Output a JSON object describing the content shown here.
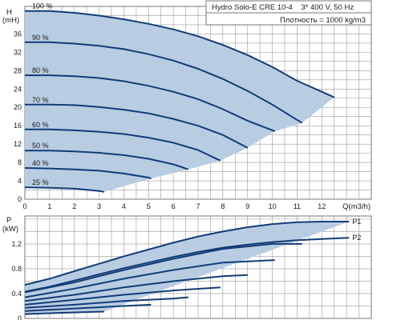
{
  "chart_data": [
    {
      "type": "line",
      "title": "Hydro Solo-E CRE 10-4    3* 400 V, 50 Hz",
      "subtitle": "Плотность = 1000 kg/m3",
      "ylabel_top": "H",
      "ylabel_unit": "(mH)",
      "xlabel": "Q(m3/h)",
      "xlim": [
        0,
        14
      ],
      "ylim": [
        0,
        42
      ],
      "xticks": [
        "0",
        "1",
        "2",
        "3",
        "4",
        "5",
        "6",
        "7",
        "8",
        "9",
        "10",
        "11",
        "12"
      ],
      "yticks": [
        "0",
        "4",
        "8",
        "12",
        "16",
        "20",
        "24",
        "28",
        "32",
        "36"
      ],
      "grid": true,
      "colors": {
        "curve": "#123c78",
        "area": "#b9cde2",
        "grid": "#9a9a9a"
      },
      "series": [
        {
          "name": "100 %",
          "points": [
            [
              0,
              41
            ],
            [
              1,
              41
            ],
            [
              2,
              40.6
            ],
            [
              3,
              40
            ],
            [
              4,
              39.2
            ],
            [
              5,
              38.2
            ],
            [
              6,
              37
            ],
            [
              7,
              35.5
            ],
            [
              8,
              33.6
            ],
            [
              9,
              31.4
            ],
            [
              10,
              28.8
            ],
            [
              11,
              25.8
            ],
            [
              12.5,
              22.2
            ]
          ]
        },
        {
          "name": "90 %",
          "points": [
            [
              0,
              34.2
            ],
            [
              1,
              34.2
            ],
            [
              2,
              33.9
            ],
            [
              3,
              33.4
            ],
            [
              4,
              32.7
            ],
            [
              5,
              31.6
            ],
            [
              6,
              30.2
            ],
            [
              7,
              28.4
            ],
            [
              8,
              26.2
            ],
            [
              9,
              23.6
            ],
            [
              10,
              20.6
            ],
            [
              11.2,
              16.6
            ]
          ]
        },
        {
          "name": "80 %",
          "points": [
            [
              0,
              27
            ],
            [
              1,
              27
            ],
            [
              2,
              26.8
            ],
            [
              3,
              26.4
            ],
            [
              4,
              25.7
            ],
            [
              5,
              24.7
            ],
            [
              6,
              23.4
            ],
            [
              7,
              21.8
            ],
            [
              8,
              19.6
            ],
            [
              9,
              17.1
            ],
            [
              10.1,
              14.8
            ]
          ]
        },
        {
          "name": "70 %",
          "points": [
            [
              0,
              20.6
            ],
            [
              1,
              20.6
            ],
            [
              2,
              20.5
            ],
            [
              3,
              20.1
            ],
            [
              4,
              19.5
            ],
            [
              5,
              18.7
            ],
            [
              6,
              17.5
            ],
            [
              7,
              16
            ],
            [
              8,
              14
            ],
            [
              9,
              11.2
            ]
          ]
        },
        {
          "name": "60 %",
          "points": [
            [
              0,
              15.2
            ],
            [
              1,
              15.2
            ],
            [
              2,
              15
            ],
            [
              3,
              14.7
            ],
            [
              4,
              14.2
            ],
            [
              5,
              13.4
            ],
            [
              6,
              12.3
            ],
            [
              7,
              10.7
            ],
            [
              7.9,
              8.4
            ]
          ]
        },
        {
          "name": "50 %",
          "points": [
            [
              0,
              10.6
            ],
            [
              1,
              10.6
            ],
            [
              2,
              10.4
            ],
            [
              3,
              10.1
            ],
            [
              4,
              9.6
            ],
            [
              5,
              8.8
            ],
            [
              6,
              7.6
            ],
            [
              6.6,
              6.5
            ]
          ]
        },
        {
          "name": "40 %",
          "points": [
            [
              0,
              6.8
            ],
            [
              1,
              6.7
            ],
            [
              2,
              6.5
            ],
            [
              3,
              6.2
            ],
            [
              4,
              5.6
            ],
            [
              5,
              4.7
            ],
            [
              5.1,
              4.5
            ]
          ]
        },
        {
          "name": "25 %",
          "points": [
            [
              0,
              2.6
            ],
            [
              1,
              2.5
            ],
            [
              2,
              2.3
            ],
            [
              3,
              1.8
            ],
            [
              3.2,
              1.6
            ]
          ]
        }
      ],
      "series_labels": [
        "100 %",
        "90 %",
        "80 %",
        "70 %",
        "60 %",
        "50 %",
        "40 %",
        "25 %"
      ]
    },
    {
      "type": "line",
      "ylabel_top": "P",
      "ylabel_unit": "(kW)",
      "xlim": [
        0,
        14
      ],
      "ylim": [
        0,
        1.65
      ],
      "yticks": [
        "0",
        "0.4",
        "0.8",
        "1.2"
      ],
      "grid": true,
      "series": [
        {
          "name": "P1",
          "points": [
            [
              0,
              0.54
            ],
            [
              1,
              0.64
            ],
            [
              2,
              0.76
            ],
            [
              3,
              0.88
            ],
            [
              4,
              1.0
            ],
            [
              5,
              1.11
            ],
            [
              6,
              1.22
            ],
            [
              7,
              1.32
            ],
            [
              8,
              1.4
            ],
            [
              9,
              1.47
            ],
            [
              10,
              1.52
            ],
            [
              11,
              1.55
            ],
            [
              12,
              1.56
            ],
            [
              13.1,
              1.56
            ]
          ]
        },
        {
          "name": "P2",
          "points": [
            [
              0,
              0.43
            ],
            [
              1,
              0.51
            ],
            [
              2,
              0.61
            ],
            [
              3,
              0.71
            ],
            [
              4,
              0.81
            ],
            [
              5,
              0.9
            ],
            [
              6,
              0.99
            ],
            [
              7,
              1.07
            ],
            [
              8,
              1.14
            ],
            [
              9,
              1.19
            ],
            [
              10,
              1.23
            ],
            [
              11,
              1.26
            ],
            [
              12,
              1.28
            ],
            [
              13.1,
              1.3
            ]
          ]
        },
        {
          "name": "",
          "points": [
            [
              0,
              0.42
            ],
            [
              2,
              0.58
            ],
            [
              4,
              0.78
            ],
            [
              6,
              0.96
            ],
            [
              8,
              1.12
            ],
            [
              10,
              1.2
            ],
            [
              11.2,
              1.2
            ]
          ]
        },
        {
          "name": "",
          "points": [
            [
              0,
              0.34
            ],
            [
              2,
              0.48
            ],
            [
              4,
              0.64
            ],
            [
              6,
              0.78
            ],
            [
              8,
              0.9
            ],
            [
              10.1,
              0.94
            ]
          ]
        },
        {
          "name": "",
          "points": [
            [
              0,
              0.28
            ],
            [
              2,
              0.38
            ],
            [
              4,
              0.5
            ],
            [
              6,
              0.6
            ],
            [
              8,
              0.68
            ],
            [
              9,
              0.7
            ]
          ]
        },
        {
          "name": "",
          "points": [
            [
              0,
              0.22
            ],
            [
              2,
              0.3
            ],
            [
              4,
              0.38
            ],
            [
              6,
              0.45
            ],
            [
              7.9,
              0.5
            ]
          ]
        },
        {
          "name": "",
          "points": [
            [
              0,
              0.17
            ],
            [
              2,
              0.22
            ],
            [
              4,
              0.28
            ],
            [
              6,
              0.32
            ],
            [
              6.6,
              0.34
            ]
          ]
        },
        {
          "name": "",
          "points": [
            [
              0,
              0.12
            ],
            [
              2,
              0.16
            ],
            [
              4,
              0.2
            ],
            [
              5.1,
              0.22
            ]
          ]
        },
        {
          "name": "",
          "points": [
            [
              0,
              0.07
            ],
            [
              1.5,
              0.09
            ],
            [
              3.2,
              0.11
            ]
          ]
        }
      ],
      "series_labels": [
        "P1",
        "P2"
      ]
    }
  ]
}
